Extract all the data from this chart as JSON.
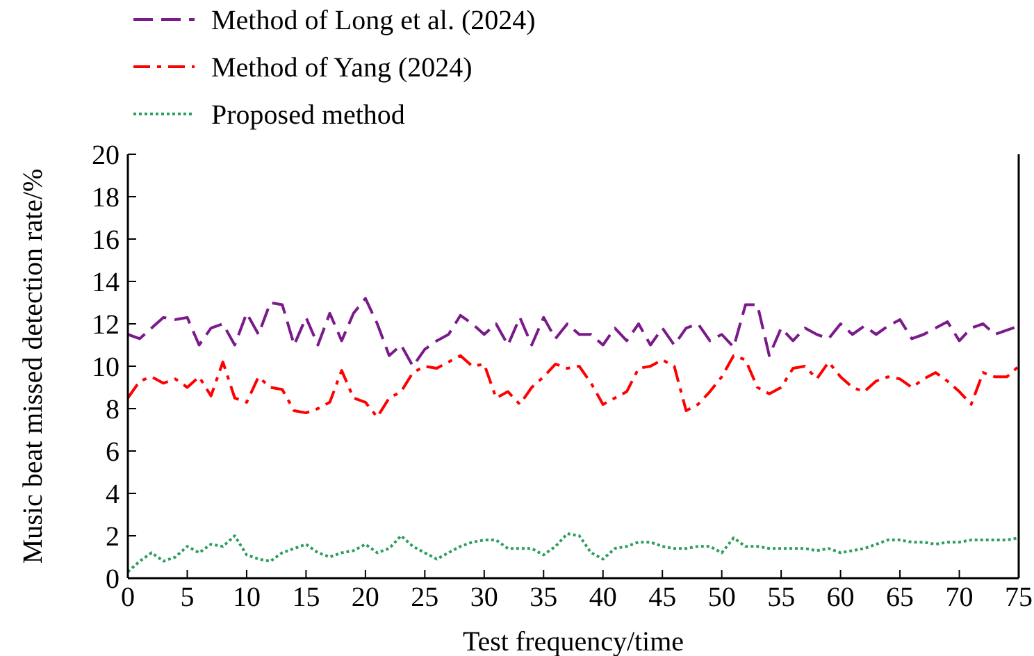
{
  "chart_data": {
    "type": "line",
    "xlabel": "Test frequency/time",
    "ylabel": "Music beat missed detection rate/%",
    "x": [
      0,
      1,
      2,
      3,
      4,
      5,
      6,
      7,
      8,
      9,
      10,
      11,
      12,
      13,
      14,
      15,
      16,
      17,
      18,
      19,
      20,
      21,
      22,
      23,
      24,
      25,
      26,
      27,
      28,
      29,
      30,
      31,
      32,
      33,
      34,
      35,
      36,
      37,
      38,
      39,
      40,
      41,
      42,
      43,
      44,
      45,
      46,
      47,
      48,
      49,
      50,
      51,
      52,
      53,
      54,
      55,
      56,
      57,
      58,
      59,
      60,
      61,
      62,
      63,
      64,
      65,
      66,
      67,
      68,
      69,
      70,
      71,
      72,
      73,
      74,
      75
    ],
    "xlim": [
      0,
      75
    ],
    "xticks": [
      0,
      5,
      10,
      15,
      20,
      25,
      30,
      35,
      40,
      45,
      50,
      55,
      60,
      65,
      70,
      75
    ],
    "ylim": [
      0,
      20
    ],
    "yticks": [
      0,
      2,
      4,
      6,
      8,
      10,
      12,
      14,
      16,
      18,
      20
    ],
    "grid": false,
    "legend": "top",
    "marker": "none",
    "series": [
      {
        "name": "Method of Long et al. (2024)",
        "color": "#7b1a8a",
        "line_style": "dashed",
        "values": [
          11.5,
          11.3,
          11.8,
          12.3,
          12.2,
          12.3,
          11.0,
          11.8,
          12.0,
          11.0,
          12.5,
          11.5,
          13.0,
          12.9,
          11.0,
          12.3,
          11.0,
          12.5,
          11.2,
          12.5,
          13.2,
          12.0,
          10.5,
          11.0,
          10.0,
          10.8,
          11.2,
          11.5,
          12.4,
          12.0,
          11.5,
          12.0,
          11.0,
          12.3,
          11.0,
          12.3,
          11.3,
          12.0,
          11.5,
          11.5,
          11.0,
          11.8,
          11.2,
          12.0,
          11.0,
          11.8,
          11.0,
          11.8,
          12.0,
          11.2,
          11.5,
          10.9,
          12.9,
          12.9,
          10.5,
          11.8,
          11.2,
          11.8,
          11.5,
          11.3,
          12.0,
          11.5,
          11.9,
          11.5,
          11.9,
          12.2,
          11.3,
          11.5,
          11.8,
          12.1,
          11.2,
          11.8,
          12.0,
          11.5,
          11.7,
          11.9
        ]
      },
      {
        "name": "Method of Yang (2024)",
        "color": "#ff0000",
        "line_style": "dashdot",
        "values": [
          8.5,
          9.3,
          9.5,
          9.2,
          9.4,
          9.0,
          9.5,
          8.6,
          10.2,
          8.5,
          8.3,
          9.5,
          9.0,
          8.9,
          7.9,
          7.8,
          8.0,
          8.3,
          9.8,
          8.5,
          8.3,
          7.6,
          8.5,
          8.8,
          9.7,
          10.0,
          9.9,
          10.2,
          10.5,
          10.0,
          10.1,
          8.5,
          8.8,
          8.2,
          9.0,
          9.5,
          10.1,
          9.9,
          10.0,
          9.2,
          8.2,
          8.5,
          8.8,
          9.9,
          10.0,
          10.3,
          10.0,
          7.9,
          8.2,
          8.8,
          9.5,
          10.5,
          10.3,
          9.0,
          8.7,
          9.0,
          9.9,
          10.0,
          9.4,
          10.2,
          9.5,
          9.0,
          8.8,
          9.3,
          9.5,
          9.4,
          9.0,
          9.4,
          9.7,
          9.3,
          8.8,
          8.2,
          9.7,
          9.5,
          9.5,
          10.0
        ]
      },
      {
        "name": "Proposed method",
        "color": "#2e9e5e",
        "line_style": "dotted",
        "values": [
          0.3,
          0.8,
          1.2,
          0.8,
          1.0,
          1.5,
          1.2,
          1.6,
          1.5,
          2.0,
          1.1,
          0.9,
          0.8,
          1.2,
          1.4,
          1.6,
          1.2,
          1.0,
          1.2,
          1.3,
          1.6,
          1.2,
          1.4,
          2.0,
          1.5,
          1.2,
          0.9,
          1.2,
          1.5,
          1.7,
          1.8,
          1.8,
          1.4,
          1.4,
          1.4,
          1.1,
          1.5,
          2.1,
          2.0,
          1.2,
          0.9,
          1.4,
          1.5,
          1.7,
          1.7,
          1.5,
          1.4,
          1.4,
          1.5,
          1.5,
          1.2,
          1.9,
          1.5,
          1.5,
          1.4,
          1.4,
          1.4,
          1.4,
          1.3,
          1.4,
          1.2,
          1.3,
          1.4,
          1.6,
          1.8,
          1.8,
          1.7,
          1.7,
          1.6,
          1.7,
          1.7,
          1.8,
          1.8,
          1.8,
          1.8,
          1.9
        ]
      }
    ]
  }
}
